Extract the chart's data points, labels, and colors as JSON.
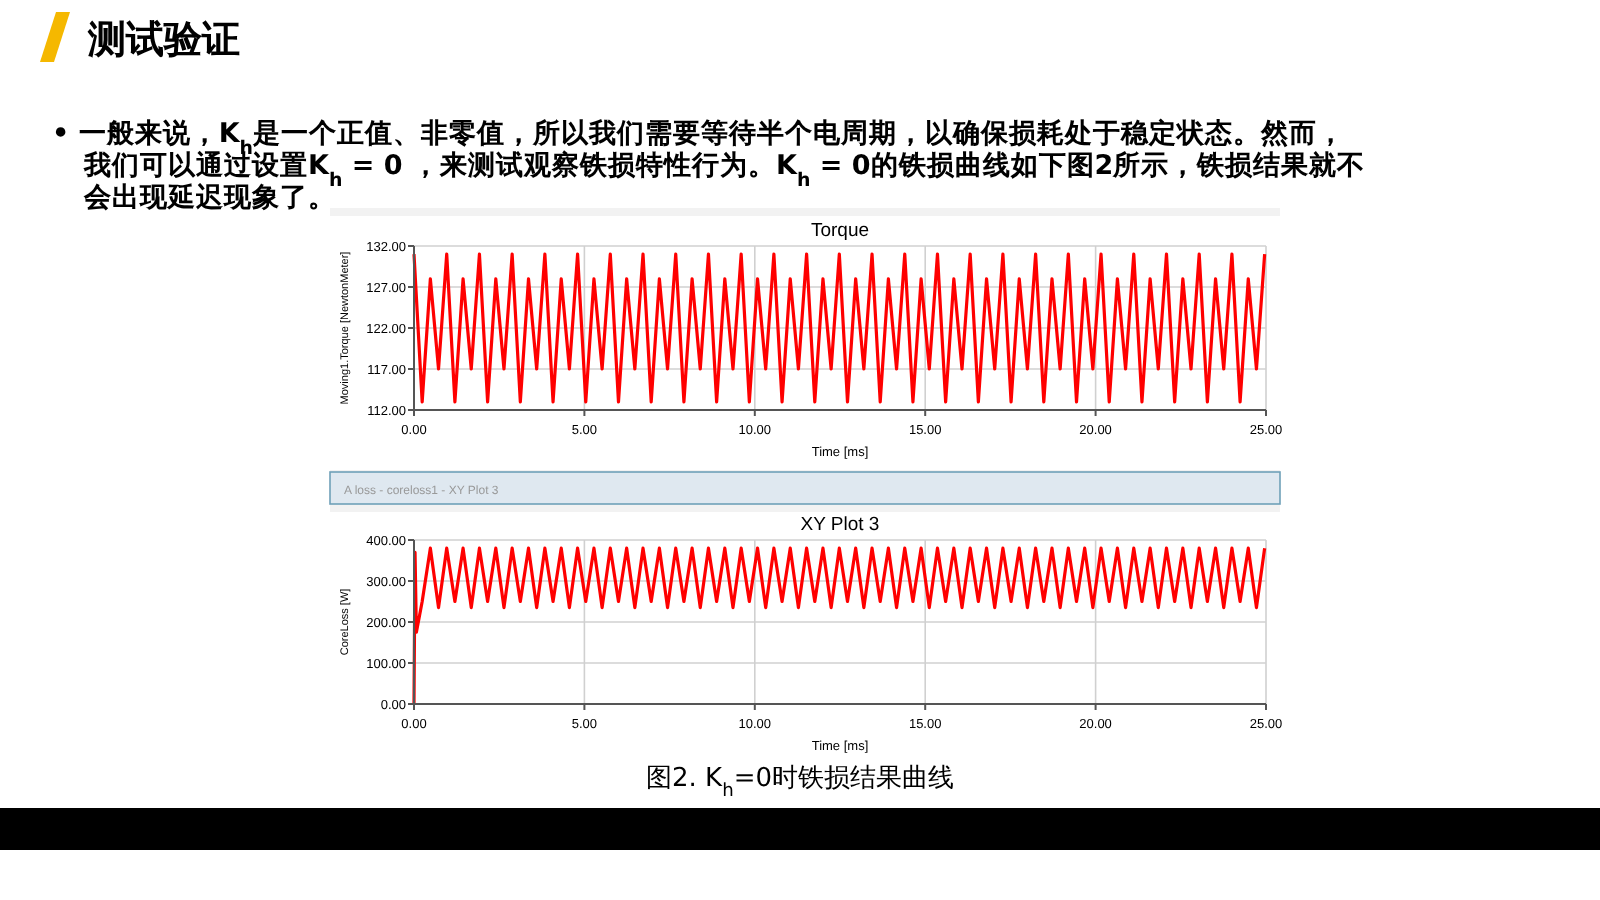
{
  "chart_data": [
    {
      "type": "line",
      "title": "Torque",
      "xlabel": "Time [ms]",
      "ylabel": "Moving1.Torque [NewtonMeter]",
      "annotations": [
        "测试验证",
        "• 一般来说，K$_{h}$是一个正值、非零值，所以我们需要等待半个电周期，以确保损耗处于稳定状态。然而，",
        "我们可以通过设置K$_{h}$ = 0 ，来测试观察铁损特性行为。K$_{h}$ = 0的铁损曲线如下图2所示，铁损结果就不",
        "会出现延迟现象了。"
      ],
      "xlim": [
        0,
        25
      ],
      "xticks": [
        {
          "value": 0,
          "label": "0.00"
        },
        {
          "value": 5,
          "label": "5.00"
        },
        {
          "value": 10,
          "label": "10.00"
        },
        {
          "value": 15,
          "label": "15.00"
        },
        {
          "value": 20,
          "label": "20.00"
        },
        {
          "value": 25,
          "label": "25.00"
        }
      ],
      "ylim": [
        112,
        132
      ],
      "yticks": [
        {
          "value": 112,
          "label": "112.00"
        },
        {
          "value": 117,
          "label": "117.00"
        },
        {
          "value": 122,
          "label": "122.00"
        },
        {
          "value": 127,
          "label": "127.00"
        },
        {
          "value": 132,
          "label": "132.00"
        }
      ],
      "grid": true,
      "marker": "none",
      "line_style": "solid",
      "series": [
        {
          "color": "#ff0000",
          "x": [
            0,
            0.24,
            0.48,
            0.72,
            0.96,
            1.2,
            1.44,
            1.68,
            1.92,
            2.16,
            2.4,
            2.64,
            2.88,
            3.12,
            3.36,
            3.6,
            3.84,
            4.08,
            4.32,
            4.56,
            4.8,
            5.04,
            5.28,
            5.52,
            5.76,
            6,
            6.24,
            6.48,
            6.72,
            6.96,
            7.2,
            7.44,
            7.68,
            7.92,
            8.16,
            8.4,
            8.64,
            8.88,
            9.12,
            9.36,
            9.6,
            9.84,
            10.08,
            10.32,
            10.56,
            10.8,
            11.04,
            11.28,
            11.52,
            11.76,
            12,
            12.24,
            12.48,
            12.72,
            12.96,
            13.2,
            13.44,
            13.68,
            13.92,
            14.16,
            14.4,
            14.64,
            14.88,
            15.12,
            15.36,
            15.6,
            15.84,
            16.08,
            16.32,
            16.56,
            16.8,
            17.04,
            17.28,
            17.52,
            17.76,
            18,
            18.24,
            18.48,
            18.72,
            18.96,
            19.2,
            19.44,
            19.68,
            19.92,
            20.16,
            20.4,
            20.64,
            20.88,
            21.12,
            21.36,
            21.6,
            21.84,
            22.08,
            22.32,
            22.56,
            22.8,
            23.04,
            23.28,
            23.52,
            23.76,
            24,
            24.24,
            24.48,
            24.72,
            24.96
          ],
          "values": [
            131,
            113,
            128,
            117,
            131,
            113,
            128,
            117,
            131,
            113,
            128,
            117,
            131,
            113,
            128,
            117,
            131,
            113,
            128,
            117,
            131,
            113,
            128,
            117,
            131,
            113,
            128,
            117,
            131,
            113,
            128,
            117,
            131,
            113,
            128,
            117,
            131,
            113,
            128,
            117,
            131,
            113,
            128,
            117,
            131,
            113,
            128,
            117,
            131,
            113,
            128,
            117,
            131,
            113,
            128,
            117,
            131,
            113,
            128,
            117,
            131,
            113,
            128,
            117,
            131,
            113,
            128,
            117,
            131,
            113,
            128,
            117,
            131,
            113,
            128,
            117,
            131,
            113,
            128,
            117,
            131,
            113,
            128,
            117,
            131,
            113,
            128,
            117,
            131,
            113,
            128,
            117,
            131,
            113,
            128,
            117,
            131,
            113,
            128,
            117,
            131,
            113,
            128,
            117,
            131
          ]
        }
      ]
    },
    {
      "type": "line",
      "title": "XY Plot 3",
      "xlabel": "Time [ms]",
      "ylabel": "CoreLoss [W]",
      "annotations": [
        "A loss - coreloss1 - XY Plot 3",
        "图2. K$_{h}$=0时铁损结果曲线"
      ],
      "xlim": [
        0,
        25
      ],
      "xticks": [
        {
          "value": 0,
          "label": "0.00"
        },
        {
          "value": 5,
          "label": "5.00"
        },
        {
          "value": 10,
          "label": "10.00"
        },
        {
          "value": 15,
          "label": "15.00"
        },
        {
          "value": 20,
          "label": "20.00"
        },
        {
          "value": 25,
          "label": "25.00"
        }
      ],
      "ylim": [
        0,
        400
      ],
      "yticks": [
        {
          "value": 0,
          "label": "0.00"
        },
        {
          "value": 100,
          "label": "100.00"
        },
        {
          "value": 200,
          "label": "200.00"
        },
        {
          "value": 300,
          "label": "300.00"
        },
        {
          "value": 400,
          "label": "400.00"
        }
      ],
      "grid": true,
      "marker": "none",
      "line_style": "solid",
      "series": [
        {
          "color": "#ff0000",
          "x": [
            0,
            0.03,
            0.07,
            0.24,
            0.48,
            0.72,
            0.96,
            1.2,
            1.44,
            1.68,
            1.92,
            2.16,
            2.4,
            2.64,
            2.88,
            3.12,
            3.36,
            3.6,
            3.84,
            4.08,
            4.32,
            4.56,
            4.8,
            5.04,
            5.28,
            5.52,
            5.76,
            6,
            6.24,
            6.48,
            6.72,
            6.96,
            7.2,
            7.44,
            7.68,
            7.92,
            8.16,
            8.4,
            8.64,
            8.88,
            9.12,
            9.36,
            9.6,
            9.84,
            10.08,
            10.32,
            10.56,
            10.8,
            11.04,
            11.28,
            11.52,
            11.76,
            12,
            12.24,
            12.48,
            12.72,
            12.96,
            13.2,
            13.44,
            13.68,
            13.92,
            14.16,
            14.4,
            14.64,
            14.88,
            15.12,
            15.36,
            15.6,
            15.84,
            16.08,
            16.32,
            16.56,
            16.8,
            17.04,
            17.28,
            17.52,
            17.76,
            18,
            18.24,
            18.48,
            18.72,
            18.96,
            19.2,
            19.44,
            19.68,
            19.92,
            20.16,
            20.4,
            20.64,
            20.88,
            21.12,
            21.36,
            21.6,
            21.84,
            22.08,
            22.32,
            22.56,
            22.8,
            23.04,
            23.28,
            23.52,
            23.76,
            24,
            24.24,
            24.48,
            24.72,
            24.96
          ],
          "values": [
            0,
            370,
            175,
            250,
            380,
            235,
            380,
            250,
            380,
            235,
            380,
            250,
            380,
            235,
            380,
            250,
            380,
            235,
            380,
            250,
            380,
            235,
            380,
            250,
            380,
            235,
            380,
            250,
            380,
            235,
            380,
            250,
            380,
            235,
            380,
            250,
            380,
            235,
            380,
            250,
            380,
            235,
            380,
            250,
            380,
            235,
            380,
            250,
            380,
            235,
            380,
            250,
            380,
            235,
            380,
            250,
            380,
            235,
            380,
            250,
            380,
            235,
            380,
            250,
            380,
            235,
            380,
            250,
            380,
            235,
            380,
            250,
            380,
            235,
            380,
            250,
            380,
            235,
            380,
            250,
            380,
            235,
            380,
            250,
            380,
            235,
            380,
            250,
            380,
            235,
            380,
            250,
            380,
            235,
            380,
            250,
            380,
            235,
            380,
            250,
            380,
            235,
            380,
            250,
            380,
            235,
            380
          ]
        }
      ]
    }
  ]
}
